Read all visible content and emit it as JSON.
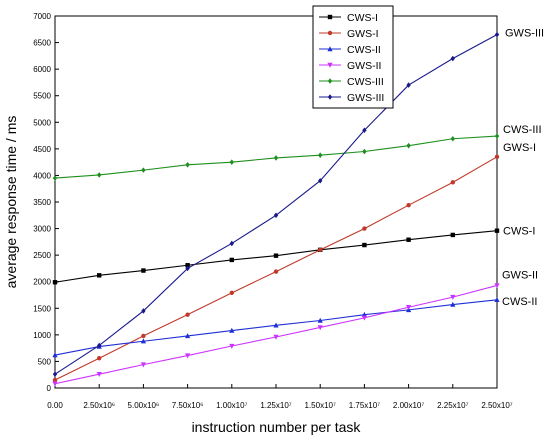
{
  "chart_data": {
    "type": "line",
    "title": "",
    "xlabel": "instruction number per task",
    "ylabel": "average response time / ms",
    "xlim": [
      0,
      25000000
    ],
    "ylim": [
      0,
      7000
    ],
    "x_ticks": [
      {
        "value": 0,
        "label": "0.00"
      },
      {
        "value": 2500000,
        "label": "2.50x10⁶"
      },
      {
        "value": 5000000,
        "label": "5.00x10⁶"
      },
      {
        "value": 7500000,
        "label": "7.50x10⁶"
      },
      {
        "value": 10000000,
        "label": "1.00x10⁷"
      },
      {
        "value": 12500000,
        "label": "1.25x10⁷"
      },
      {
        "value": 15000000,
        "label": "1.50x10⁷"
      },
      {
        "value": 17500000,
        "label": "1.75x10⁷"
      },
      {
        "value": 20000000,
        "label": "2.00x10⁷"
      },
      {
        "value": 22500000,
        "label": "2.25x10⁷"
      },
      {
        "value": 25000000,
        "label": "2.50x10⁷"
      }
    ],
    "y_ticks": [
      0,
      500,
      1000,
      1500,
      2000,
      2500,
      3000,
      3500,
      4000,
      4500,
      5000,
      5500,
      6000,
      6500,
      7000
    ],
    "grid": false,
    "legend_position": "top-right",
    "series": [
      {
        "name": "CWS-I",
        "end_label": "CWS-I",
        "color": "#000000",
        "marker": "square",
        "x": [
          0,
          2500000,
          5000000,
          7500000,
          10000000,
          12500000,
          15000000,
          17500000,
          20000000,
          22500000,
          25000000
        ],
        "y": [
          1990,
          2120,
          2210,
          2310,
          2410,
          2490,
          2600,
          2690,
          2790,
          2880,
          2960
        ]
      },
      {
        "name": "GWS-I",
        "end_label": "GWS-I",
        "color": "#c0392b",
        "marker": "circle",
        "x": [
          0,
          2500000,
          5000000,
          7500000,
          10000000,
          12500000,
          15000000,
          17500000,
          20000000,
          22500000,
          25000000
        ],
        "y": [
          150,
          560,
          980,
          1380,
          1790,
          2190,
          2600,
          3000,
          3440,
          3870,
          4350
        ]
      },
      {
        "name": "CWS-II",
        "end_label": "CWS-II",
        "color": "#1f2fd6",
        "marker": "triangle-up",
        "x": [
          0,
          2500000,
          5000000,
          7500000,
          10000000,
          12500000,
          15000000,
          17500000,
          20000000,
          22500000,
          25000000
        ],
        "y": [
          620,
          780,
          880,
          980,
          1080,
          1180,
          1270,
          1380,
          1470,
          1570,
          1660
        ]
      },
      {
        "name": "GWS-II",
        "end_label": "GWS-II",
        "color": "#cc33ff",
        "marker": "triangle-down",
        "x": [
          0,
          2500000,
          5000000,
          7500000,
          10000000,
          12500000,
          15000000,
          17500000,
          20000000,
          22500000,
          25000000
        ],
        "y": [
          80,
          260,
          440,
          610,
          790,
          960,
          1140,
          1320,
          1520,
          1710,
          1930
        ]
      },
      {
        "name": "CWS-III",
        "end_label": "CWS-III",
        "color": "#1e8f1e",
        "marker": "diamond",
        "x": [
          0,
          2500000,
          5000000,
          7500000,
          10000000,
          12500000,
          15000000,
          17500000,
          20000000,
          22500000,
          25000000
        ],
        "y": [
          3950,
          4010,
          4100,
          4200,
          4250,
          4330,
          4380,
          4450,
          4560,
          4690,
          4740
        ]
      },
      {
        "name": "GWS-III",
        "end_label": "GWS-III",
        "color": "#1a1a8c",
        "marker": "diamond",
        "x": [
          0,
          2500000,
          5000000,
          7500000,
          10000000,
          12500000,
          15000000,
          17500000,
          20000000,
          22500000,
          25000000
        ],
        "y": [
          260,
          800,
          1450,
          2250,
          2720,
          3250,
          3900,
          4850,
          5700,
          6200,
          6650
        ]
      }
    ]
  }
}
